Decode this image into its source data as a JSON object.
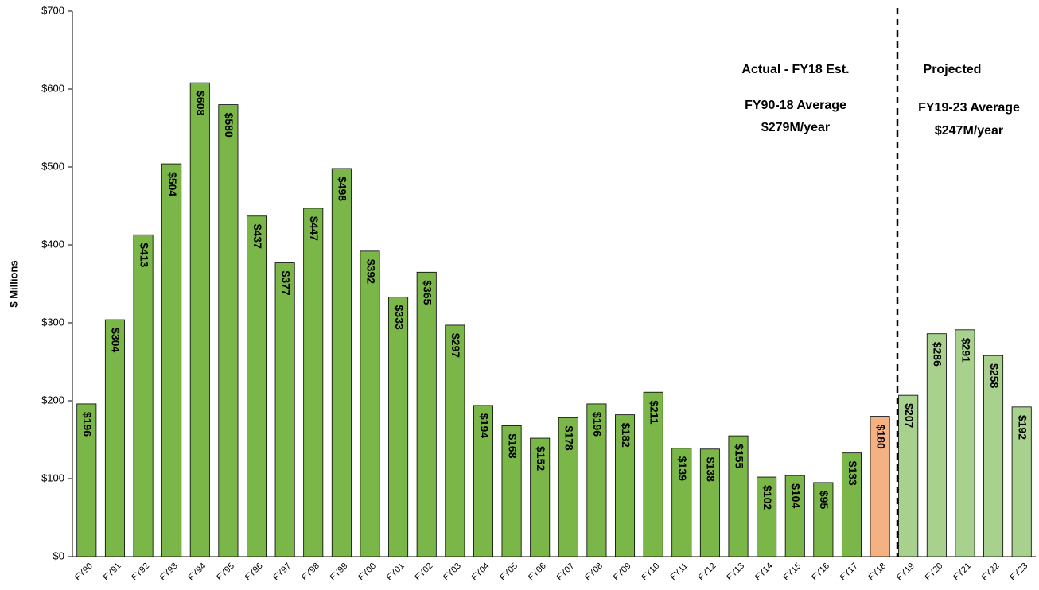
{
  "chart_data": {
    "type": "bar",
    "y_axis_label": "$ Millions",
    "categories": [
      "FY90",
      "FY91",
      "FY92",
      "FY93",
      "FY94",
      "FY95",
      "FY96",
      "FY97",
      "FY98",
      "FY99",
      "FY00",
      "FY01",
      "FY02",
      "FY03",
      "FY04",
      "FY05",
      "FY06",
      "FY07",
      "FY08",
      "FY09",
      "FY10",
      "FY11",
      "FY12",
      "FY13",
      "FY14",
      "FY15",
      "FY16",
      "FY17",
      "FY18",
      "FY19",
      "FY20",
      "FY21",
      "FY22",
      "FY23"
    ],
    "values": [
      196,
      304,
      413,
      504,
      608,
      580,
      437,
      377,
      447,
      498,
      392,
      333,
      365,
      297,
      194,
      168,
      152,
      178,
      196,
      182,
      211,
      139,
      138,
      155,
      102,
      104,
      95,
      133,
      180,
      207,
      286,
      291,
      258,
      192
    ],
    "value_labels": [
      "$196",
      "$304",
      "$413",
      "$504",
      "$608",
      "$580",
      "$437",
      "$377",
      "$447",
      "$498",
      "$392",
      "$333",
      "$365",
      "$297",
      "$194",
      "$168",
      "$152",
      "$178",
      "$196",
      "$182",
      "$211",
      "$139",
      "$138",
      "$155",
      "$102",
      "$104",
      "$95",
      "$133",
      "$180",
      "$207",
      "$286",
      "$291",
      "$258",
      "$192"
    ],
    "colors": [
      "#7ab648",
      "#7ab648",
      "#7ab648",
      "#7ab648",
      "#7ab648",
      "#7ab648",
      "#7ab648",
      "#7ab648",
      "#7ab648",
      "#7ab648",
      "#7ab648",
      "#7ab648",
      "#7ab648",
      "#7ab648",
      "#7ab648",
      "#7ab648",
      "#7ab648",
      "#7ab648",
      "#7ab648",
      "#7ab648",
      "#7ab648",
      "#7ab648",
      "#7ab648",
      "#7ab648",
      "#7ab648",
      "#7ab648",
      "#7ab648",
      "#7ab648",
      "#f4b183",
      "#a9d18e",
      "#a9d18e",
      "#a9d18e",
      "#a9d18e",
      "#a9d18e"
    ],
    "ylim": [
      0,
      700
    ],
    "yticks": [
      {
        "value": 0,
        "label": "$0"
      },
      {
        "value": 100,
        "label": "$100"
      },
      {
        "value": 200,
        "label": "$200"
      },
      {
        "value": 300,
        "label": "$300"
      },
      {
        "value": 400,
        "label": "$400"
      },
      {
        "value": 500,
        "label": "$500"
      },
      {
        "value": 600,
        "label": "$600"
      },
      {
        "value": 700,
        "label": "$700"
      }
    ],
    "annotations": [
      "Actual - FY18 Est.",
      "FY90-18 Average",
      "$279M/year",
      "Projected",
      "FY19-23 Average",
      "$247M/year"
    ]
  }
}
